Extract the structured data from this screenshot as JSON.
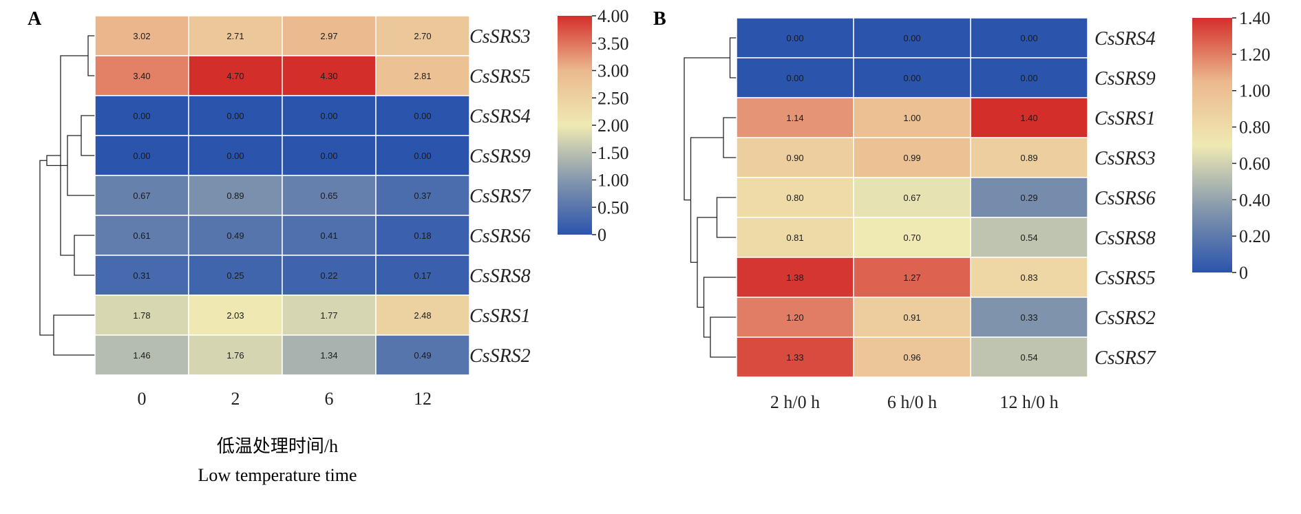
{
  "chart_data": [
    {
      "type": "heatmap",
      "panel_label": "A",
      "categories": [
        "0",
        "2",
        "6",
        "12"
      ],
      "rows": [
        "CsSRS3",
        "CsSRS5",
        "CsSRS4",
        "CsSRS9",
        "CsSRS7",
        "CsSRS6",
        "CsSRS8",
        "CsSRS1",
        "CsSRS2"
      ],
      "values": [
        [
          3.02,
          2.71,
          2.97,
          2.7
        ],
        [
          3.4,
          4.7,
          4.3,
          2.81
        ],
        [
          0.0,
          0.0,
          0.0,
          0.0
        ],
        [
          0.0,
          0.0,
          0.0,
          0.0
        ],
        [
          0.67,
          0.89,
          0.65,
          0.37
        ],
        [
          0.61,
          0.49,
          0.41,
          0.18
        ],
        [
          0.31,
          0.25,
          0.22,
          0.17
        ],
        [
          1.78,
          2.03,
          1.77,
          2.48
        ],
        [
          1.46,
          1.76,
          1.34,
          0.49
        ]
      ],
      "value_labels": [
        [
          "3.02",
          "2.71",
          "2.97",
          "2.70"
        ],
        [
          "3.40",
          "4.70",
          "4.30",
          "2.81"
        ],
        [
          "0.00",
          "0.00",
          "0.00",
          "0.00"
        ],
        [
          "0.00",
          "0.00",
          "0.00",
          "0.00"
        ],
        [
          "0.67",
          "0.89",
          "0.65",
          "0.37"
        ],
        [
          "0.61",
          "0.49",
          "0.41",
          "0.18"
        ],
        [
          "0.31",
          "0.25",
          "0.22",
          "0.17"
        ],
        [
          "1.78",
          "2.03",
          "1.77",
          "2.48"
        ],
        [
          "1.46",
          "1.76",
          "1.34",
          "0.49"
        ]
      ],
      "xlabel_zh": "低温处理时间/h",
      "xlabel": "Low temperature time",
      "colorbar": {
        "min": 0,
        "max": 4.0,
        "ticks": [
          "4.00",
          "3.50",
          "3.00",
          "2.50",
          "2.00",
          "1.50",
          "1.00",
          "0.50",
          "0"
        ]
      },
      "dendrogram": {
        "leaves_order": [
          0,
          1,
          2,
          3,
          4,
          5,
          6,
          7,
          8
        ],
        "merges": [
          [
            0,
            1
          ],
          [
            2,
            3
          ],
          [
            5,
            6
          ],
          [
            4,
            10
          ],
          [
            9,
            11
          ],
          [
            7,
            8
          ],
          [
            12,
            13
          ],
          [
            14,
            15
          ]
        ]
      }
    },
    {
      "type": "heatmap",
      "panel_label": "B",
      "categories": [
        "2 h/0 h",
        "6 h/0 h",
        "12 h/0 h"
      ],
      "rows": [
        "CsSRS4",
        "CsSRS9",
        "CsSRS1",
        "CsSRS3",
        "CsSRS6",
        "CsSRS8",
        "CsSRS5",
        "CsSRS2",
        "CsSRS7"
      ],
      "values": [
        [
          0.0,
          0.0,
          0.0
        ],
        [
          0.0,
          0.0,
          0.0
        ],
        [
          1.14,
          1.0,
          1.4
        ],
        [
          0.9,
          0.99,
          0.89
        ],
        [
          0.8,
          0.67,
          0.29
        ],
        [
          0.81,
          0.7,
          0.54
        ],
        [
          1.38,
          1.27,
          0.83
        ],
        [
          1.2,
          0.91,
          0.33
        ],
        [
          1.33,
          0.96,
          0.54
        ]
      ],
      "value_labels": [
        [
          "0.00",
          "0.00",
          "0.00"
        ],
        [
          "0.00",
          "0.00",
          "0.00"
        ],
        [
          "1.14",
          "1.00",
          "1.40"
        ],
        [
          "0.90",
          "0.99",
          "0.89"
        ],
        [
          "0.80",
          "0.67",
          "0.29"
        ],
        [
          "0.81",
          "0.70",
          "0.54"
        ],
        [
          "1.38",
          "1.27",
          "0.83"
        ],
        [
          "1.20",
          "0.91",
          "0.33"
        ],
        [
          "1.33",
          "0.96",
          "0.54"
        ]
      ],
      "colorbar": {
        "min": 0,
        "max": 1.4,
        "ticks": [
          "1.40",
          "1.20",
          "1.00",
          "0.80",
          "0.60",
          "0.40",
          "0.20",
          "0"
        ]
      },
      "dendrogram": {
        "leaves_order": [
          0,
          1,
          2,
          3,
          4,
          5,
          6,
          7,
          8
        ],
        "merges": [
          [
            0,
            1
          ],
          [
            2,
            3
          ],
          [
            4,
            5
          ],
          [
            7,
            8
          ],
          [
            6,
            12
          ],
          [
            11,
            13
          ],
          [
            10,
            14
          ],
          [
            9,
            15
          ]
        ]
      }
    }
  ],
  "palette": {
    "low": "#2b54ad",
    "mid": "#efe9b3",
    "high": "#d42e2b",
    "stops": [
      "#2b54ad",
      "#8497ad",
      "#efe9b3",
      "#ebb98e",
      "#d42e2b"
    ]
  }
}
